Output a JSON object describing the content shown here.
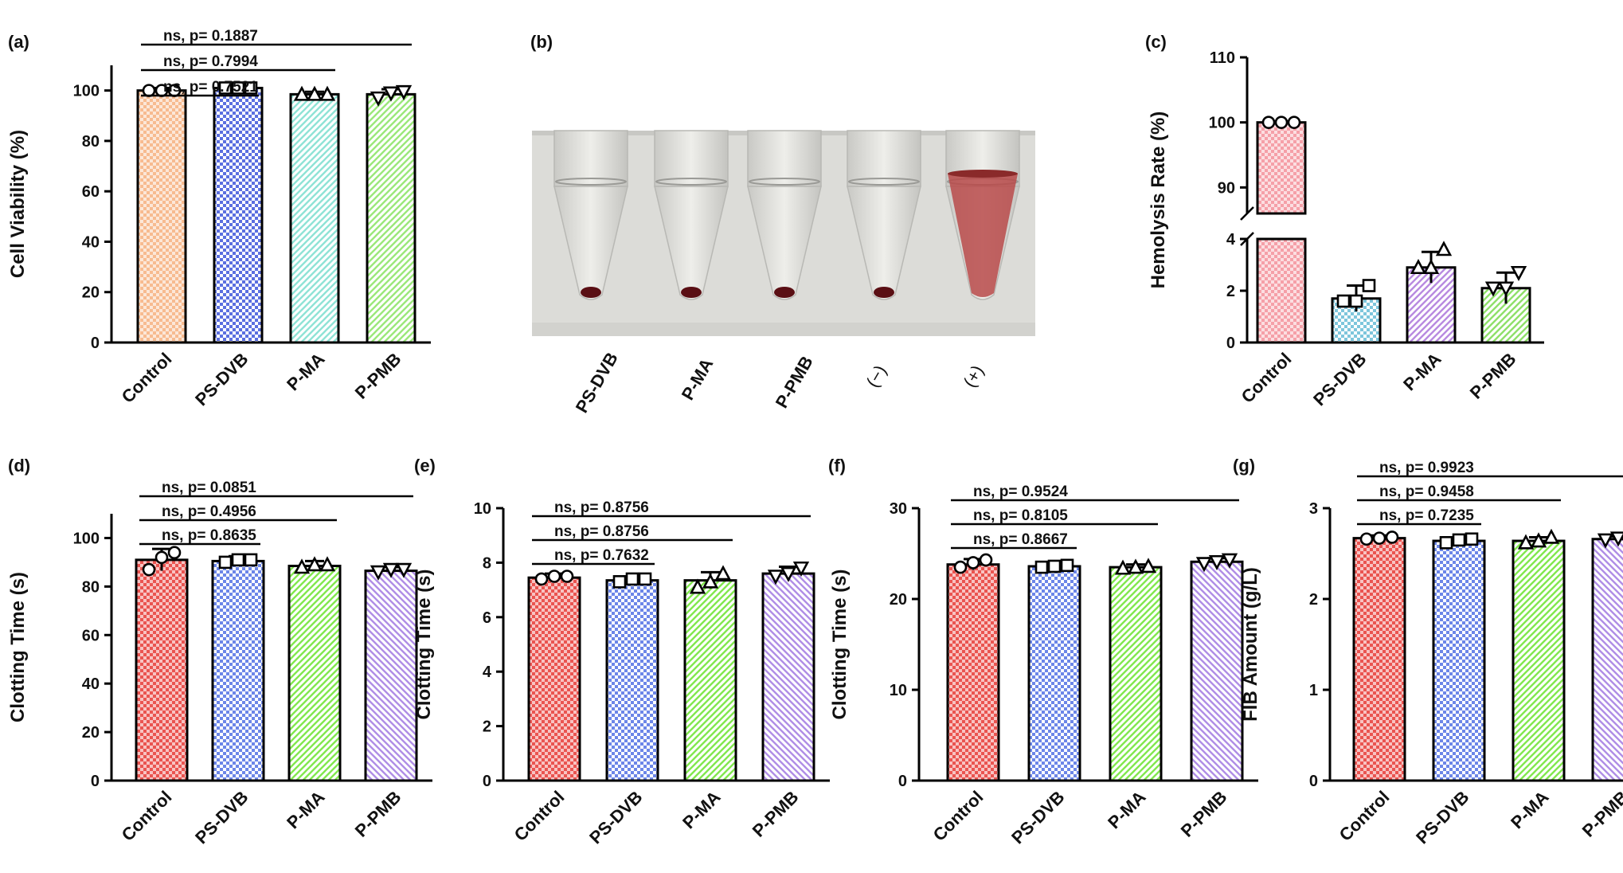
{
  "chart_data": [
    {
      "panel": "(a)",
      "type": "bar",
      "ylabel": "Cell Viability (%)",
      "ylim": [
        0,
        110
      ],
      "yticks": [
        0,
        20,
        40,
        60,
        80,
        100
      ],
      "categories": [
        "Control",
        "PS-DVB",
        "P-MA",
        "P-PMB"
      ],
      "values": [
        100,
        101,
        98.5,
        98.5
      ],
      "errors": [
        1.0,
        1.5,
        1.0,
        2.0
      ],
      "points": [
        [
          100,
          100,
          100
        ],
        [
          101,
          101,
          101
        ],
        [
          98.5,
          98.5,
          98.5
        ],
        [
          97,
          99,
          99.5
        ]
      ],
      "markers": [
        "circle",
        "square",
        "triangle",
        "inv-triangle"
      ],
      "fills": [
        "#f7bb90",
        "#5b6fe0",
        "#8fe3d6",
        "#9be87a"
      ],
      "patterns": [
        "dense",
        "checker",
        "diag-right",
        "diag-right"
      ],
      "comparisons": [
        {
          "from": 0,
          "to": 1,
          "text": "ns, p= 0.7521"
        },
        {
          "from": 0,
          "to": 2,
          "text": "ns, p= 0.7994"
        },
        {
          "from": 0,
          "to": 3,
          "text": "ns, p= 0.1887"
        }
      ]
    },
    {
      "panel": "(c)",
      "type": "bar",
      "ylabel": "Hemolysis Rate (%)",
      "axis_break": true,
      "lower_range": [
        0,
        4
      ],
      "upper_range": [
        86,
        110
      ],
      "lower_ticks": [
        0,
        2,
        4
      ],
      "upper_ticks": [
        90,
        100,
        110
      ],
      "categories": [
        "Control",
        "PS-DVB",
        "P-MA",
        "P-PMB"
      ],
      "values": [
        100,
        1.7,
        2.9,
        2.1
      ],
      "errors": [
        0.3,
        0.5,
        0.6,
        0.6
      ],
      "points": [
        [
          100,
          100,
          100
        ],
        [
          1.6,
          1.6,
          2.2
        ],
        [
          2.9,
          2.9,
          3.6
        ],
        [
          2.1,
          2.1,
          2.7
        ]
      ],
      "markers": [
        "circle",
        "square",
        "triangle",
        "inv-triangle"
      ],
      "fills": [
        "#f5a0a8",
        "#7ec6dc",
        "#b88ae0",
        "#8fe06a"
      ],
      "patterns": [
        "dense",
        "checker",
        "diag-right",
        "diag-right"
      ],
      "comparisons": []
    },
    {
      "panel": "(d)",
      "type": "bar",
      "ylabel": "Clotting Time (s)",
      "ylim": [
        0,
        110
      ],
      "yticks": [
        0,
        20,
        40,
        60,
        80,
        100
      ],
      "categories": [
        "Control",
        "PS-DVB",
        "P-MA",
        "P-PMB"
      ],
      "values": [
        91,
        90.5,
        88.5,
        86.5
      ],
      "errors": [
        4.5,
        2.0,
        2.0,
        1.5
      ],
      "points": [
        [
          87,
          92,
          94
        ],
        [
          90,
          91,
          91
        ],
        [
          88,
          89,
          89
        ],
        [
          86,
          87,
          87
        ]
      ],
      "markers": [
        "circle",
        "square",
        "triangle",
        "inv-triangle"
      ],
      "fills": [
        "#ea5450",
        "#6c86e8",
        "#82e84e",
        "#b08ee6"
      ],
      "patterns": [
        "dense",
        "checker",
        "diag-right",
        "diag-left"
      ],
      "comparisons": [
        {
          "from": 0,
          "to": 1,
          "text": "ns, p= 0.8635"
        },
        {
          "from": 0,
          "to": 2,
          "text": "ns, p= 0.4956"
        },
        {
          "from": 0,
          "to": 3,
          "text": "ns, p= 0.0851"
        }
      ]
    },
    {
      "panel": "(e)",
      "type": "bar",
      "ylabel": "Clotting Time (s)",
      "ylim": [
        0,
        10
      ],
      "yticks": [
        0,
        2,
        4,
        6,
        8,
        10
      ],
      "categories": [
        "Control",
        "PS-DVB",
        "P-MA",
        "P-PMB"
      ],
      "values": [
        7.45,
        7.35,
        7.35,
        7.6
      ],
      "errors": [
        0.15,
        0.15,
        0.3,
        0.25
      ],
      "points": [
        [
          7.4,
          7.5,
          7.5
        ],
        [
          7.3,
          7.4,
          7.4
        ],
        [
          7.1,
          7.3,
          7.6
        ],
        [
          7.5,
          7.6,
          7.8
        ]
      ],
      "markers": [
        "circle",
        "square",
        "triangle",
        "inv-triangle"
      ],
      "fills": [
        "#ea5450",
        "#6c86e8",
        "#82e84e",
        "#b08ee6"
      ],
      "patterns": [
        "dense",
        "checker",
        "diag-right",
        "diag-left"
      ],
      "comparisons": [
        {
          "from": 0,
          "to": 1,
          "text": "ns, p= 0.7632"
        },
        {
          "from": 0,
          "to": 2,
          "text": "ns, p= 0.8756"
        },
        {
          "from": 0,
          "to": 3,
          "text": "ns, p= 0.8756"
        }
      ]
    },
    {
      "panel": "(f)",
      "type": "bar",
      "ylabel": "Clotting Time (s)",
      "ylim": [
        0,
        30
      ],
      "yticks": [
        0,
        10,
        20,
        30
      ],
      "categories": [
        "Control",
        "PS-DVB",
        "P-MA",
        "P-PMB"
      ],
      "values": [
        23.8,
        23.6,
        23.5,
        24.1
      ],
      "errors": [
        0.6,
        0.3,
        0.3,
        0.4
      ],
      "points": [
        [
          23.5,
          24,
          24.3
        ],
        [
          23.5,
          23.6,
          23.7
        ],
        [
          23.4,
          23.5,
          23.6
        ],
        [
          23.9,
          24.1,
          24.3
        ]
      ],
      "markers": [
        "circle",
        "square",
        "triangle",
        "inv-triangle"
      ],
      "fills": [
        "#ea5450",
        "#6c86e8",
        "#82e84e",
        "#b08ee6"
      ],
      "patterns": [
        "dense",
        "checker",
        "diag-right",
        "diag-left"
      ],
      "comparisons": [
        {
          "from": 0,
          "to": 1,
          "text": "ns, p= 0.8667"
        },
        {
          "from": 0,
          "to": 2,
          "text": "ns, p= 0.8105"
        },
        {
          "from": 0,
          "to": 3,
          "text": "ns, p= 0.9524"
        }
      ]
    },
    {
      "panel": "(g)",
      "type": "bar",
      "ylabel": "FIB Amount (g/L)",
      "ylim": [
        0,
        3
      ],
      "yticks": [
        0,
        1,
        2,
        3
      ],
      "categories": [
        "Control",
        "PS-DVB",
        "P-MA",
        "P-PMB"
      ],
      "values": [
        2.67,
        2.64,
        2.64,
        2.66
      ],
      "errors": [
        0.03,
        0.04,
        0.04,
        0.03
      ],
      "points": [
        [
          2.66,
          2.67,
          2.68
        ],
        [
          2.62,
          2.65,
          2.66
        ],
        [
          2.62,
          2.64,
          2.68
        ],
        [
          2.65,
          2.67,
          2.69
        ]
      ],
      "markers": [
        "circle",
        "square",
        "triangle",
        "inv-triangle"
      ],
      "fills": [
        "#ea5450",
        "#6c86e8",
        "#82e84e",
        "#b08ee6"
      ],
      "patterns": [
        "dense",
        "checker",
        "diag-right",
        "diag-left"
      ],
      "comparisons": [
        {
          "from": 0,
          "to": 1,
          "text": "ns, p= 0.7235"
        },
        {
          "from": 0,
          "to": 2,
          "text": "ns, p= 0.9458"
        },
        {
          "from": 0,
          "to": 3,
          "text": "ns, p= 0.9923"
        }
      ]
    }
  ],
  "photo_panel": {
    "label": "(b)",
    "tubes": [
      "PS-DVB",
      "P-MA",
      "P-PMB",
      "(−)",
      "(+)"
    ],
    "colors": {
      "background": "#dcdcd8",
      "pellet": "#5a0f14",
      "positive": "#b84a4a"
    }
  }
}
